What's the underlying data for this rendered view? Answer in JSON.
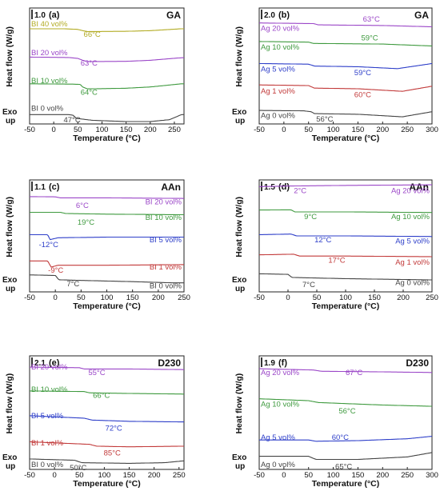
{
  "chart_data": [
    {
      "type": "line",
      "panel": "(a)",
      "corner_label": "GA",
      "scale_label": "1.0",
      "xlabel": "Temperature (°C)",
      "ylabel": "Heat flow (W/g)",
      "exo_label": [
        "Exo",
        "up"
      ],
      "xlim": [
        -50,
        270
      ],
      "xticks": [
        -50,
        0,
        50,
        100,
        150,
        200,
        250
      ],
      "series": [
        {
          "name": "BI 40 vol%",
          "tg": "66°C",
          "color": "#b3ac25",
          "offset": 4,
          "baseline": [
            [
              -50,
              0.1
            ],
            [
              20,
              0.1
            ],
            [
              50,
              0.05
            ],
            [
              60,
              -0.05
            ],
            [
              70,
              -0.12
            ],
            [
              150,
              -0.1
            ],
            [
              200,
              -0.05
            ],
            [
              265,
              0.1
            ]
          ]
        },
        {
          "name": "BI 20 vol%",
          "tg": "63°C",
          "color": "#9b47c8",
          "offset": 3,
          "baseline": [
            [
              -50,
              0.15
            ],
            [
              30,
              0.12
            ],
            [
              50,
              0.05
            ],
            [
              60,
              -0.1
            ],
            [
              70,
              -0.2
            ],
            [
              150,
              -0.18
            ],
            [
              200,
              -0.1
            ],
            [
              265,
              0.1
            ]
          ]
        },
        {
          "name": "BI 10 vol%",
          "tg": "64°C",
          "color": "#3f9a3f",
          "offset": 2,
          "baseline": [
            [
              -50,
              0.15
            ],
            [
              40,
              0.12
            ],
            [
              55,
              0.1
            ],
            [
              60,
              -0.1
            ],
            [
              70,
              -0.25
            ],
            [
              150,
              -0.2
            ],
            [
              200,
              -0.1
            ],
            [
              265,
              0.15
            ]
          ]
        },
        {
          "name": "BI 0 vol%",
          "tg": "47°C",
          "color": "#444444",
          "offset": 1,
          "baseline": [
            [
              -50,
              0.1
            ],
            [
              30,
              0.1
            ],
            [
              40,
              0.05
            ],
            [
              47,
              -0.2
            ],
            [
              80,
              -0.35
            ],
            [
              150,
              -0.45
            ],
            [
              200,
              -0.45
            ],
            [
              240,
              -0.3
            ],
            [
              265,
              0.1
            ]
          ]
        }
      ]
    },
    {
      "type": "line",
      "panel": "(b)",
      "corner_label": "GA",
      "scale_label": "2.0",
      "xlabel": "Temperature (°C)",
      "ylabel": "Heat flow (W/g)",
      "exo_label": [
        "Exo",
        "up"
      ],
      "xlim": [
        -50,
        300
      ],
      "xticks": [
        -50,
        0,
        50,
        100,
        150,
        200,
        250,
        300
      ],
      "series": [
        {
          "name": "Ag 20 vol%",
          "tg": "63°C",
          "color": "#9b47c8",
          "offset": 5,
          "baseline": [
            [
              -50,
              0.1
            ],
            [
              60,
              0.05
            ],
            [
              70,
              -0.05
            ],
            [
              200,
              -0.1
            ],
            [
              300,
              -0.2
            ]
          ]
        },
        {
          "name": "Ag 10 vol%",
          "tg": "59°C",
          "color": "#3f9a3f",
          "offset": 4,
          "baseline": [
            [
              -50,
              0.1
            ],
            [
              50,
              0.05
            ],
            [
              60,
              -0.05
            ],
            [
              200,
              -0.1
            ],
            [
              300,
              -0.25
            ]
          ]
        },
        {
          "name": "Ag 5 vol%",
          "tg": "59°C",
          "color": "#2e3fc9",
          "offset": 3,
          "baseline": [
            [
              -50,
              0.1
            ],
            [
              50,
              0.05
            ],
            [
              62,
              -0.1
            ],
            [
              150,
              -0.15
            ],
            [
              230,
              -0.3
            ],
            [
              300,
              0.1
            ]
          ]
        },
        {
          "name": "Ag 1 vol%",
          "tg": "60°C",
          "color": "#c23a3a",
          "offset": 2,
          "baseline": [
            [
              -50,
              0.15
            ],
            [
              50,
              0.1
            ],
            [
              62,
              -0.1
            ],
            [
              150,
              -0.15
            ],
            [
              240,
              -0.35
            ],
            [
              300,
              0.05
            ]
          ]
        },
        {
          "name": "Ag 0 vol%",
          "tg": "56°C",
          "color": "#444444",
          "offset": 1,
          "baseline": [
            [
              -50,
              0.15
            ],
            [
              40,
              0.12
            ],
            [
              55,
              0.05
            ],
            [
              62,
              -0.1
            ],
            [
              150,
              -0.15
            ],
            [
              240,
              -0.35
            ],
            [
              300,
              0.05
            ]
          ]
        }
      ]
    },
    {
      "type": "line",
      "panel": "(c)",
      "corner_label": "AAn",
      "scale_label": "1.1",
      "xlabel": "Temperature (°C)",
      "ylabel": "Heat flow (W/g)",
      "exo_label": [
        "Exo",
        "up"
      ],
      "xlim": [
        -50,
        250
      ],
      "xticks": [
        -50,
        0,
        50,
        100,
        150,
        200,
        250
      ],
      "series": [
        {
          "name": "BI 20 vol%",
          "tg": "6°C",
          "color": "#9b47c8",
          "offset": 5,
          "baseline": [
            [
              -50,
              0.1
            ],
            [
              0,
              0.08
            ],
            [
              10,
              0.0
            ],
            [
              100,
              0.0
            ],
            [
              250,
              -0.05
            ]
          ]
        },
        {
          "name": "BI 10 vol%",
          "tg": "19°C",
          "color": "#3f9a3f",
          "offset": 4,
          "baseline": [
            [
              -50,
              0.1
            ],
            [
              10,
              0.1
            ],
            [
              20,
              0.0
            ],
            [
              100,
              -0.05
            ],
            [
              250,
              -0.1
            ]
          ]
        },
        {
          "name": "BI 5 vol%",
          "tg": "-12°C",
          "color": "#2e3fc9",
          "offset": 3,
          "baseline": [
            [
              -50,
              0.1
            ],
            [
              -15,
              0.1
            ],
            [
              -10,
              -0.3
            ],
            [
              5,
              -0.15
            ],
            [
              100,
              -0.1
            ],
            [
              250,
              -0.1
            ]
          ]
        },
        {
          "name": "BI 1 vol%",
          "tg": "-9°C",
          "color": "#c23a3a",
          "offset": 2,
          "baseline": [
            [
              -50,
              0.15
            ],
            [
              -15,
              0.15
            ],
            [
              -8,
              -0.35
            ],
            [
              5,
              -0.2
            ],
            [
              100,
              -0.2
            ],
            [
              250,
              -0.15
            ]
          ]
        },
        {
          "name": "BI 0 vol%",
          "tg": "7°C",
          "color": "#444444",
          "offset": 1,
          "baseline": [
            [
              -50,
              0.2
            ],
            [
              0,
              0.15
            ],
            [
              7,
              -0.2
            ],
            [
              50,
              -0.25
            ],
            [
              150,
              -0.35
            ],
            [
              230,
              -0.45
            ],
            [
              250,
              -0.45
            ]
          ]
        }
      ]
    },
    {
      "type": "line",
      "panel": "(d)",
      "corner_label": "AAn",
      "scale_label": "1.5",
      "xlabel": "Temperature (°C)",
      "ylabel": "Heat flow (W/g)",
      "exo_label": [
        "Exo",
        "up"
      ],
      "xlim": [
        -50,
        250
      ],
      "xticks": [
        -50,
        0,
        50,
        100,
        150,
        200,
        250
      ],
      "series": [
        {
          "name": "Ag 20 vol%",
          "tg": "2°C",
          "color": "#9b47c8",
          "offset": 5,
          "baseline": [
            [
              -50,
              0.0
            ],
            [
              0,
              0.05
            ],
            [
              100,
              0.1
            ],
            [
              250,
              0.15
            ]
          ]
        },
        {
          "name": "Ag 10 vol%",
          "tg": "9°C",
          "color": "#3f9a3f",
          "offset": 4,
          "baseline": [
            [
              -50,
              0.1
            ],
            [
              5,
              0.12
            ],
            [
              12,
              -0.05
            ],
            [
              100,
              -0.05
            ],
            [
              250,
              -0.1
            ]
          ]
        },
        {
          "name": "Ag 5 vol%",
          "tg": "12°C",
          "color": "#2e3fc9",
          "offset": 3,
          "baseline": [
            [
              -50,
              0.1
            ],
            [
              5,
              0.15
            ],
            [
              15,
              0.0
            ],
            [
              100,
              0.0
            ],
            [
              250,
              -0.05
            ]
          ]
        },
        {
          "name": "Ag 1 vol%",
          "tg": "17°C",
          "color": "#c23a3a",
          "offset": 2,
          "baseline": [
            [
              -50,
              0.1
            ],
            [
              10,
              0.15
            ],
            [
              20,
              0.0
            ],
            [
              100,
              0.0
            ],
            [
              250,
              -0.05
            ]
          ]
        },
        {
          "name": "Ag 0 vol%",
          "tg": "7°C",
          "color": "#444444",
          "offset": 1,
          "baseline": [
            [
              -50,
              0.2
            ],
            [
              0,
              0.15
            ],
            [
              7,
              -0.1
            ],
            [
              100,
              -0.2
            ],
            [
              250,
              -0.3
            ]
          ]
        }
      ]
    },
    {
      "type": "line",
      "panel": "(e)",
      "corner_label": "D230",
      "scale_label": "2.1",
      "xlabel": "Temperature (°C)",
      "ylabel": "Heat flow (W/g)",
      "exo_label": [
        "Exo",
        "up"
      ],
      "xlim": [
        -50,
        260
      ],
      "xticks": [
        -50,
        0,
        50,
        100,
        150,
        200,
        250
      ],
      "series": [
        {
          "name": "BI 20 vol%",
          "tg": "55°C",
          "color": "#9b47c8",
          "offset": 5,
          "baseline": [
            [
              -50,
              0.1
            ],
            [
              50,
              0.05
            ],
            [
              60,
              -0.05
            ],
            [
              150,
              -0.05
            ],
            [
              260,
              -0.1
            ]
          ]
        },
        {
          "name": "BI 10 vol%",
          "tg": "66°C",
          "color": "#3f9a3f",
          "offset": 4,
          "baseline": [
            [
              -50,
              0.1
            ],
            [
              60,
              0.05
            ],
            [
              70,
              -0.05
            ],
            [
              150,
              -0.1
            ],
            [
              260,
              -0.15
            ]
          ]
        },
        {
          "name": "BI 5 vol%",
          "tg": "72°C",
          "color": "#2e3fc9",
          "offset": 3,
          "baseline": [
            [
              -50,
              0.3
            ],
            [
              60,
              0.1
            ],
            [
              75,
              -0.05
            ],
            [
              150,
              -0.15
            ],
            [
              260,
              -0.2
            ]
          ]
        },
        {
          "name": "BI 1 vol%",
          "tg": "85°C",
          "color": "#c23a3a",
          "offset": 2,
          "baseline": [
            [
              -50,
              0.3
            ],
            [
              70,
              0.1
            ],
            [
              85,
              -0.05
            ],
            [
              150,
              -0.1
            ],
            [
              260,
              -0.05
            ]
          ]
        },
        {
          "name": "BI 0 vol%",
          "tg": "50°C",
          "color": "#444444",
          "offset": 1,
          "baseline": [
            [
              -50,
              0.2
            ],
            [
              40,
              0.1
            ],
            [
              55,
              -0.1
            ],
            [
              150,
              -0.15
            ],
            [
              220,
              -0.1
            ],
            [
              260,
              0.05
            ]
          ]
        }
      ]
    },
    {
      "type": "line",
      "panel": "(f)",
      "corner_label": "D230",
      "scale_label": "1.9",
      "xlabel": "Temperature (°C)",
      "ylabel": "Heat flow (W/g)",
      "exo_label": [
        "Exo",
        "up"
      ],
      "xlim": [
        -50,
        300
      ],
      "xticks": [
        -50,
        0,
        50,
        100,
        150,
        200,
        250,
        300
      ],
      "series": [
        {
          "name": "Ag 20 vol%",
          "tg": "67°C",
          "color": "#9b47c8",
          "offset": 4,
          "baseline": [
            [
              -50,
              0.15
            ],
            [
              60,
              0.05
            ],
            [
              75,
              -0.05
            ],
            [
              200,
              -0.1
            ],
            [
              300,
              -0.15
            ]
          ]
        },
        {
          "name": "Ag 10 vol%",
          "tg": "56°C",
          "color": "#3f9a3f",
          "offset": 3,
          "baseline": [
            [
              -50,
              0.2
            ],
            [
              50,
              0.05
            ],
            [
              70,
              -0.1
            ],
            [
              200,
              -0.3
            ],
            [
              300,
              -0.4
            ]
          ]
        },
        {
          "name": "Ag 5 vol%",
          "tg": "60°C",
          "color": "#2e3fc9",
          "offset": 2,
          "baseline": [
            [
              -50,
              -0.1
            ],
            [
              50,
              -0.1
            ],
            [
              65,
              -0.2
            ],
            [
              150,
              -0.15
            ],
            [
              250,
              0.0
            ],
            [
              300,
              0.2
            ]
          ]
        },
        {
          "name": "Ag 0 vol%",
          "tg": "65°C",
          "color": "#444444",
          "offset": 1,
          "baseline": [
            [
              -50,
              0.05
            ],
            [
              50,
              0.05
            ],
            [
              65,
              -0.2
            ],
            [
              150,
              -0.2
            ],
            [
              250,
              0.0
            ],
            [
              300,
              0.35
            ]
          ]
        }
      ]
    }
  ]
}
